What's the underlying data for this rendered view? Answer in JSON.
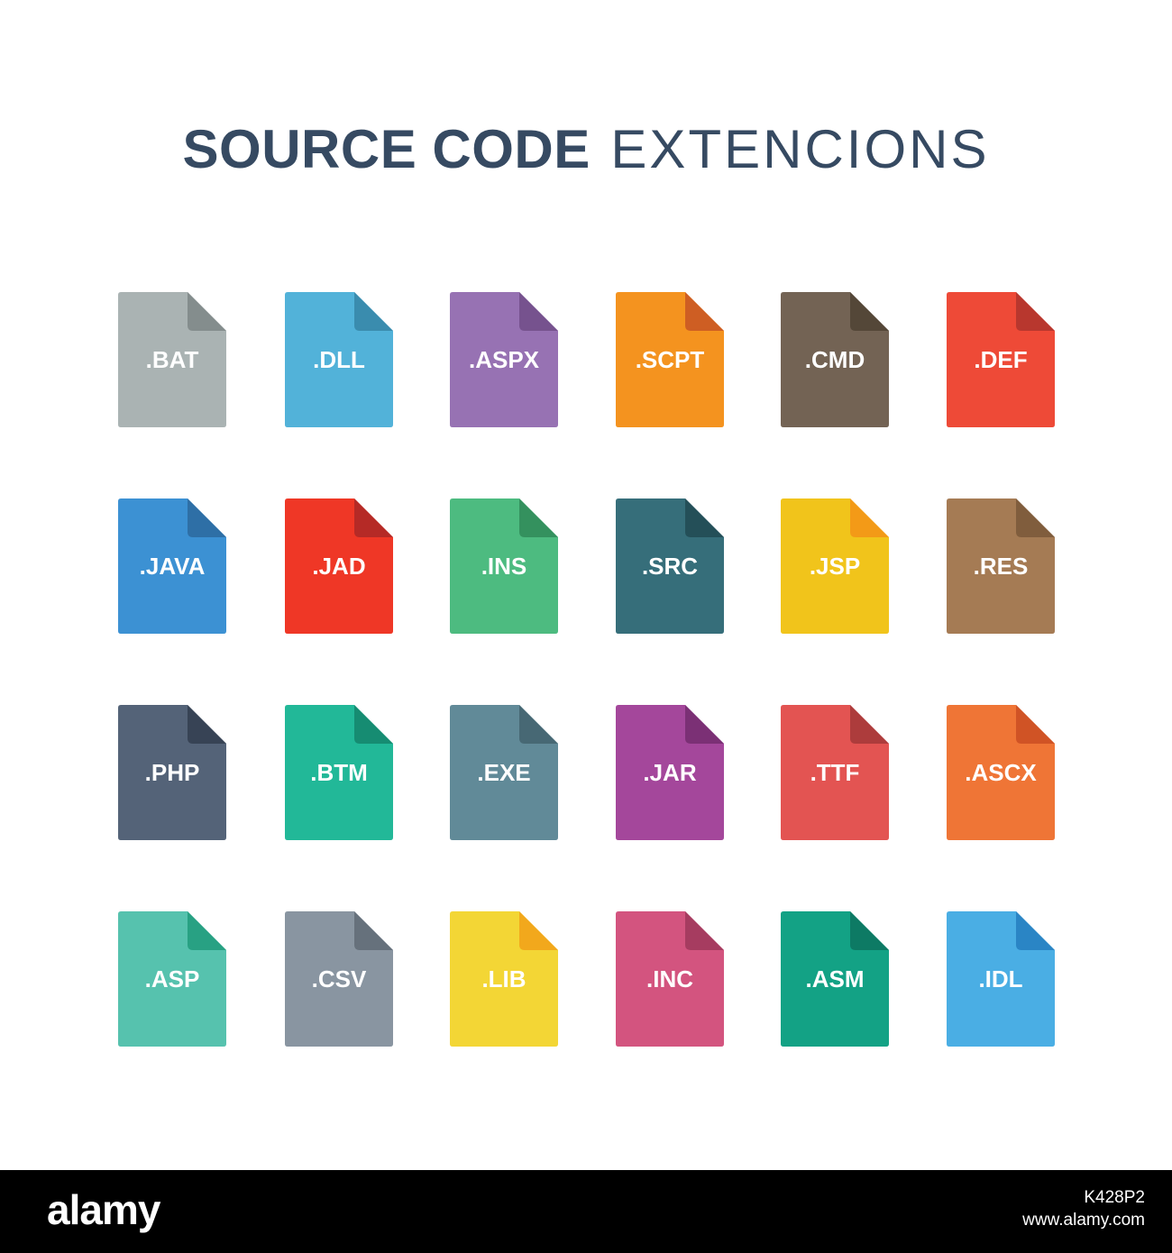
{
  "title": {
    "bold": "SOURCE CODE",
    "light": "EXTENCIONS"
  },
  "icons": [
    {
      "label": ".BAT",
      "color": "#aab3b3",
      "fold": "#848d8d"
    },
    {
      "label": ".DLL",
      "color": "#52b2d9",
      "fold": "#3a8cae"
    },
    {
      "label": ".ASPX",
      "color": "#9772b3",
      "fold": "#76528e"
    },
    {
      "label": ".SCPT",
      "color": "#f4931f",
      "fold": "#ce5e23"
    },
    {
      "label": ".CMD",
      "color": "#736354",
      "fold": "#544738"
    },
    {
      "label": ".DEF",
      "color": "#ee4a37",
      "fold": "#b8372e"
    },
    {
      "label": ".JAVA",
      "color": "#3c91d3",
      "fold": "#2e6fa6"
    },
    {
      "label": ".JAD",
      "color": "#ef3726",
      "fold": "#b52a26"
    },
    {
      "label": ".INS",
      "color": "#4dbb80",
      "fold": "#34915e"
    },
    {
      "label": ".SRC",
      "color": "#366e7a",
      "fold": "#244f58"
    },
    {
      "label": ".JSP",
      "color": "#f1c41b",
      "fold": "#f39a17"
    },
    {
      "label": ".RES",
      "color": "#a57b54",
      "fold": "#805d3d"
    },
    {
      "label": ".PHP",
      "color": "#546378",
      "fold": "#374355"
    },
    {
      "label": ".BTM",
      "color": "#22b898",
      "fold": "#168c72"
    },
    {
      "label": ".EXE",
      "color": "#618a98",
      "fold": "#476874"
    },
    {
      "label": ".JAR",
      "color": "#a4479b",
      "fold": "#7b3075"
    },
    {
      "label": ".TTF",
      "color": "#e35452",
      "fold": "#ad3c3c"
    },
    {
      "label": ".ASCX",
      "color": "#ef7536",
      "fold": "#d05325"
    },
    {
      "label": ".ASP",
      "color": "#56c2ae",
      "fold": "#28a183"
    },
    {
      "label": ".CSV",
      "color": "#8995a1",
      "fold": "#66717c"
    },
    {
      "label": ".LIB",
      "color": "#f3d635",
      "fold": "#f2a81c"
    },
    {
      "label": ".INC",
      "color": "#d3547f",
      "fold": "#a63c60"
    },
    {
      "label": ".ASM",
      "color": "#13a285",
      "fold": "#0d7a64"
    },
    {
      "label": ".IDL",
      "color": "#4aaee4",
      "fold": "#2a85c5"
    }
  ],
  "footer": {
    "logo": "alamy",
    "image_id": "K428P2",
    "url": "www.alamy.com"
  }
}
